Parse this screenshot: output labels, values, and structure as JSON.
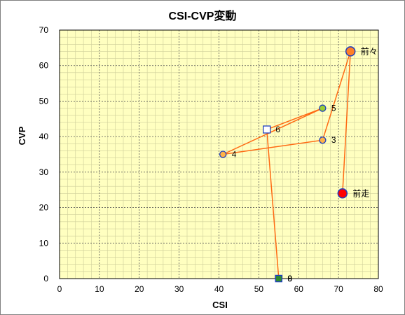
{
  "chart_data": {
    "type": "scatter",
    "title": "CSI-CVP変動",
    "xlabel": "CSI",
    "ylabel": "CVP",
    "xlim": [
      0,
      80
    ],
    "ylim": [
      0,
      70
    ],
    "xticks": [
      "0",
      "10",
      "20",
      "30",
      "40",
      "50",
      "60",
      "70",
      "80"
    ],
    "yticks": [
      "0",
      "10",
      "20",
      "30",
      "40",
      "50",
      "60",
      "70"
    ],
    "grid": true,
    "legend": "none",
    "line_color": "#ff6a13",
    "plot_bg": "#ffffc0",
    "points": [
      {
        "x": 55,
        "y": 0,
        "label": "9",
        "marker": "square",
        "fill": "#2e8b2e"
      },
      {
        "x": 55,
        "y": 0,
        "label": "8",
        "marker": "square",
        "fill": "#2e8b2e"
      },
      {
        "x": 52,
        "y": 42,
        "label": "6",
        "marker": "square-open",
        "fill": "#ffffff"
      },
      {
        "x": 66,
        "y": 48,
        "label": "5",
        "marker": "circle",
        "fill": "#9acd32"
      },
      {
        "x": 41,
        "y": 35,
        "label": "4",
        "marker": "circle",
        "fill": "#ffb347"
      },
      {
        "x": 66,
        "y": 39,
        "label": "3",
        "marker": "circle",
        "fill": "#ffb347"
      },
      {
        "x": 73,
        "y": 64,
        "label": "前々",
        "marker": "circle-large",
        "fill": "#ff7f27"
      },
      {
        "x": 71,
        "y": 24,
        "label": "前走",
        "marker": "circle-large",
        "fill": "#ff0000"
      }
    ]
  }
}
